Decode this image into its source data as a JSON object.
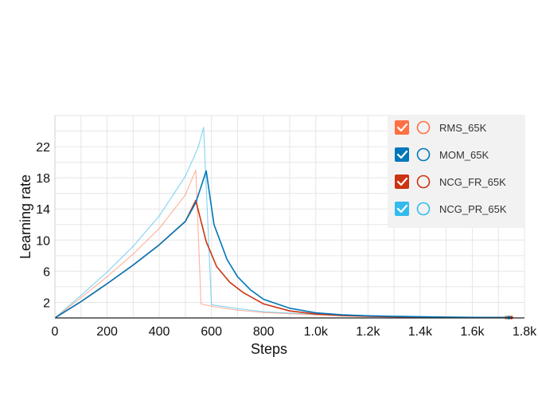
{
  "chart_data": {
    "type": "line",
    "title": "",
    "xlabel": "Steps",
    "ylabel": "Learning rate",
    "xlim": [
      0,
      1800
    ],
    "ylim": [
      0,
      26
    ],
    "x_ticks": [
      0,
      200,
      400,
      600,
      800,
      1000,
      1200,
      1400,
      1600,
      1800
    ],
    "x_tick_labels": [
      "0",
      "200",
      "400",
      "600",
      "800",
      "1.0k",
      "1.2k",
      "1.4k",
      "1.6k",
      "1.8k"
    ],
    "y_ticks": [
      2,
      6,
      10,
      14,
      18,
      22
    ],
    "y_tick_labels": [
      "2",
      "6",
      "10",
      "14",
      "18",
      "22"
    ],
    "grid": true,
    "legend_position": "top-right",
    "series": [
      {
        "name": "RMS_65K",
        "color": "#ff7043",
        "checked": true,
        "x": [
          0,
          100,
          200,
          300,
          400,
          500,
          540,
          560,
          600,
          700,
          800,
          1000,
          1200,
          1400,
          1600,
          1730
        ],
        "y": [
          0,
          2.6,
          5.3,
          8.2,
          11.5,
          15.8,
          19.0,
          1.8,
          1.5,
          1.0,
          0.7,
          0.4,
          0.25,
          0.15,
          0.08,
          0.05
        ]
      },
      {
        "name": "MOM_65K",
        "color": "#0077bb",
        "checked": true,
        "x": [
          0,
          100,
          200,
          300,
          400,
          500,
          540,
          580,
          610,
          660,
          700,
          750,
          800,
          900,
          1000,
          1100,
          1200,
          1300,
          1400,
          1500,
          1600,
          1740
        ],
        "y": [
          0,
          2.1,
          4.4,
          6.8,
          9.4,
          12.4,
          14.8,
          18.9,
          12.0,
          7.5,
          5.3,
          3.6,
          2.4,
          1.25,
          0.65,
          0.4,
          0.28,
          0.2,
          0.15,
          0.1,
          0.07,
          0.05
        ]
      },
      {
        "name": "NCG_FR_65K",
        "color": "#cc3311",
        "checked": true,
        "x": [
          0,
          100,
          200,
          300,
          400,
          500,
          540,
          580,
          620,
          670,
          720,
          800,
          900,
          1000,
          1100,
          1200,
          1300,
          1400,
          1500,
          1600,
          1750
        ],
        "y": [
          0,
          2.1,
          4.4,
          6.8,
          9.4,
          12.4,
          15.1,
          9.8,
          6.6,
          4.6,
          3.3,
          1.8,
          0.9,
          0.5,
          0.3,
          0.2,
          0.14,
          0.1,
          0.08,
          0.06,
          0.05
        ]
      },
      {
        "name": "NCG_PR_65K",
        "color": "#33bbee",
        "checked": true,
        "x": [
          0,
          100,
          200,
          300,
          400,
          500,
          550,
          570,
          600,
          700,
          800,
          1000,
          1200,
          1400,
          1600,
          1740
        ],
        "y": [
          0,
          2.9,
          5.9,
          9.2,
          13.1,
          18.2,
          22.0,
          24.5,
          1.7,
          1.2,
          0.8,
          0.45,
          0.3,
          0.18,
          0.1,
          0.05
        ]
      }
    ]
  }
}
